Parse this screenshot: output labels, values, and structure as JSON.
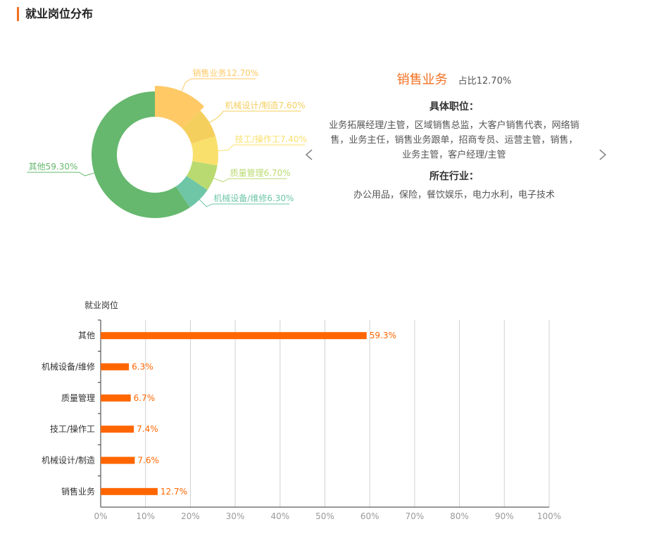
{
  "section": {
    "title": "就业岗位分布"
  },
  "detail": {
    "name": "销售业务",
    "share": "占比12.70%",
    "positions_heading": "具体职位：",
    "positions": "业务拓展经理/主管，区域销售总监，大客户销售代表，网络销售，业务主任，销售业务跟单，招商专员、运营主管，销售，业务主管，客户经理/主管",
    "industries_heading": "所在行业：",
    "industries": "办公用品，保险，餐饮娱乐，电力水利，电子技术"
  },
  "icons": {
    "prev": "chevron-left-icon",
    "next": "chevron-right-icon"
  },
  "colors": {
    "accent": "#f37021",
    "bar": "#ff6600",
    "slices": [
      "#ffc966",
      "#f5cf5e",
      "#f9e06c",
      "#b9da70",
      "#6fc6a7",
      "#66b86e"
    ]
  },
  "chart_data": [
    {
      "type": "pie",
      "variant": "donut",
      "slices": [
        {
          "label": "销售业务12.70%",
          "value": 12.7,
          "highlighted": true
        },
        {
          "label": "机械设计/制造7.60%",
          "value": 7.6
        },
        {
          "label": "技工/操作工7.40%",
          "value": 7.4
        },
        {
          "label": "质量管理6.70%",
          "value": 6.7
        },
        {
          "label": "机械设备/维修6.30%",
          "value": 6.3
        },
        {
          "label": "其他59.30%",
          "value": 59.3
        }
      ]
    },
    {
      "type": "bar",
      "orientation": "horizontal",
      "ylabel": "就业岗位",
      "categories": [
        "其他",
        "机械设备/维修",
        "质量管理",
        "技工/操作工",
        "机械设计/制造",
        "销售业务"
      ],
      "values": [
        59.3,
        6.3,
        6.7,
        7.4,
        7.6,
        12.7
      ],
      "value_labels": [
        "59.3%",
        "6.3%",
        "6.7%",
        "7.4%",
        "7.6%",
        "12.7%"
      ],
      "xlim": [
        0,
        100
      ],
      "xticks": [
        "0%",
        "10%",
        "20%",
        "30%",
        "40%",
        "50%",
        "60%",
        "70%",
        "80%",
        "90%",
        "100%"
      ],
      "grid": true
    }
  ]
}
